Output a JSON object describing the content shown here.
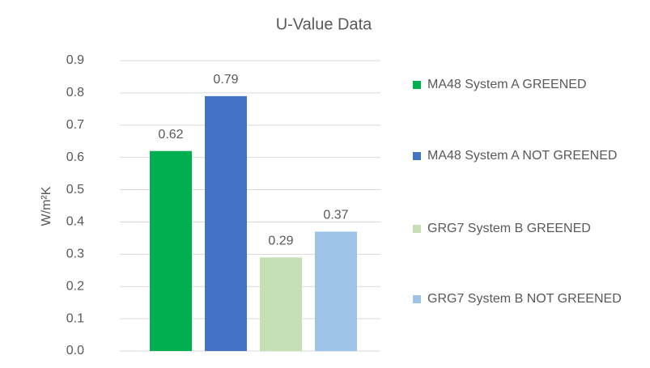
{
  "chart_data": {
    "type": "bar",
    "title": "U-Value Data",
    "y_label": "W/m²K",
    "series": [
      {
        "name": "MA48 System A GREENED",
        "color": "#00b050",
        "values": [
          0.62
        ]
      },
      {
        "name": "MA48 System A NOT GREENED",
        "color": "#4472c4",
        "values": [
          0.79
        ]
      },
      {
        "name": "GRG7 System B GREENED",
        "color": "#c5e0b4",
        "values": [
          0.29
        ]
      },
      {
        "name": "GRG7 System B NOT GREENED",
        "color": "#9dc3e6",
        "values": [
          0.37
        ]
      }
    ],
    "ylim": [
      0,
      0.9
    ],
    "yticks": [
      {
        "value": 0,
        "label": "0.0"
      },
      0.1,
      0.2,
      0.3,
      0.4,
      0.5,
      0.6,
      0.7,
      0.8,
      0.9
    ],
    "grid": true,
    "legend": "right"
  }
}
